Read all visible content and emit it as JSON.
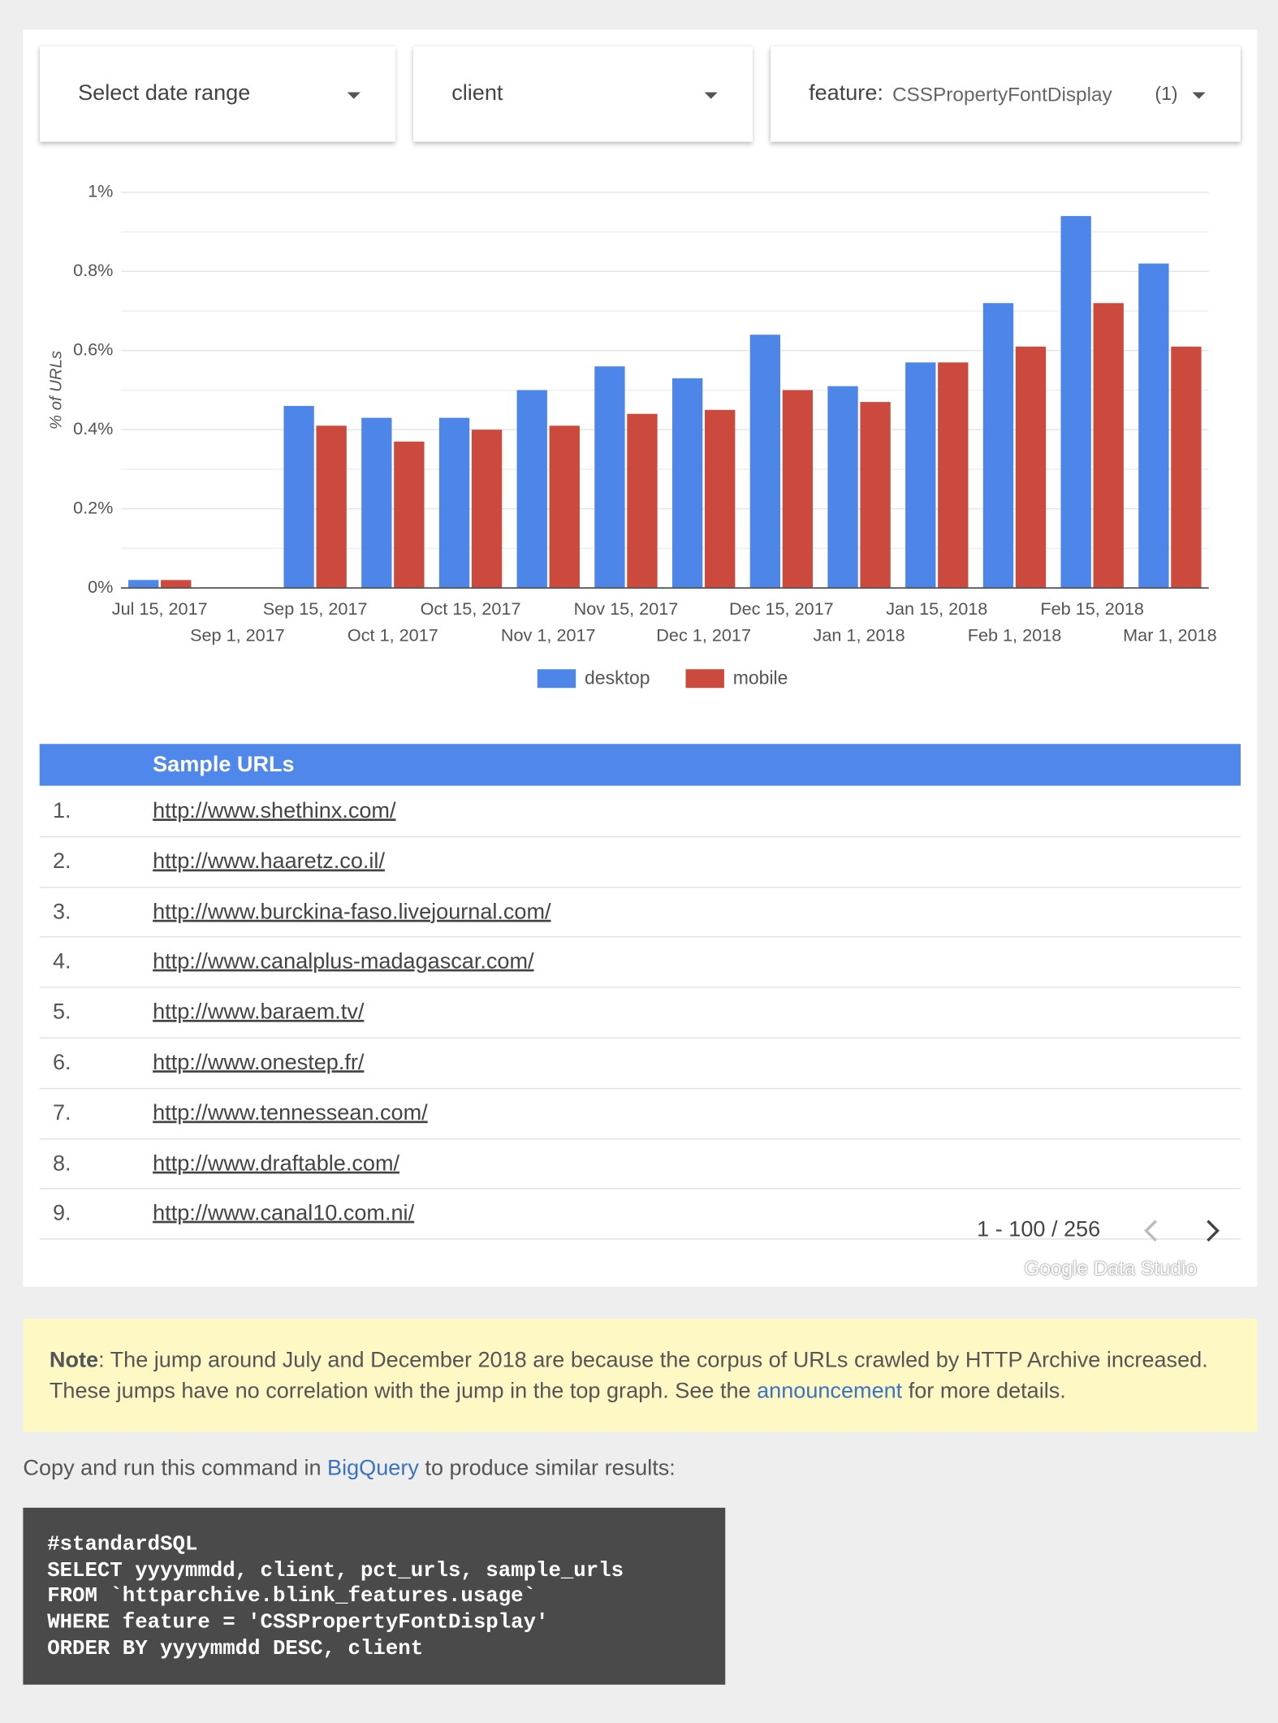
{
  "filters": {
    "date_range": "Select date range",
    "client": "client",
    "feature_label": "feature:",
    "feature_value": "CSSPropertyFontDisplay",
    "feature_count": "(1)"
  },
  "chart_data": {
    "type": "bar",
    "y_label": "% of URLs",
    "categories": [
      "Jul 15, 2017",
      "Sep 1, 2017",
      "Sep 15, 2017",
      "Oct 1, 2017",
      "Oct 15, 2017",
      "Nov 1, 2017",
      "Nov 15, 2017",
      "Dec 1, 2017",
      "Dec 15, 2017",
      "Jan 1, 2018",
      "Jan 15, 2018",
      "Feb 1, 2018",
      "Feb 15, 2018",
      "Mar 1, 2018"
    ],
    "series": [
      {
        "name": "desktop",
        "color": "#4d86e8",
        "values": [
          0.02,
          null,
          0.46,
          0.43,
          0.43,
          0.5,
          0.56,
          0.53,
          0.64,
          0.51,
          0.57,
          0.72,
          0.94,
          0.82
        ]
      },
      {
        "name": "mobile",
        "color": "#cc4a3d",
        "values": [
          0.02,
          null,
          0.41,
          0.37,
          0.4,
          0.41,
          0.44,
          0.45,
          0.5,
          0.47,
          0.57,
          0.61,
          0.72,
          0.61
        ]
      }
    ],
    "ylim": [
      0,
      1
    ],
    "yticks": [
      {
        "value": 0,
        "label": "0%"
      },
      {
        "value": 0.2,
        "label": "0.2%"
      },
      {
        "value": 0.4,
        "label": "0.4%"
      },
      {
        "value": 0.6,
        "label": "0.6%"
      },
      {
        "value": 0.8,
        "label": "0.8%"
      },
      {
        "value": 1,
        "label": "1%"
      }
    ],
    "grid": true,
    "minor_grid": true,
    "legend": "bottom"
  },
  "table": {
    "header": "Sample URLs",
    "rows": [
      [
        "1.",
        "http://www.shethinx.com/"
      ],
      [
        "2.",
        "http://www.haaretz.co.il/"
      ],
      [
        "3.",
        "http://www.burckina-faso.livejournal.com/"
      ],
      [
        "4.",
        "http://www.canalplus-madagascar.com/"
      ],
      [
        "5.",
        "http://www.baraem.tv/"
      ],
      [
        "6.",
        "http://www.onestep.fr/"
      ],
      [
        "7.",
        "http://www.tennessean.com/"
      ],
      [
        "8.",
        "http://www.draftable.com/"
      ],
      [
        "9.",
        "http://www.canal10.com.ni/"
      ]
    ]
  },
  "pagination": "1 - 100 / 256",
  "watermark": "Google Data Studio",
  "note": {
    "label": "Note",
    "text": ": The jump around July and December 2018 are because the corpus of URLs crawled by HTTP Archive increased. These jumps have no correlation with the jump in the top graph. See the ",
    "link": "announcement",
    "text_after": " for more details."
  },
  "intro": {
    "before": "Copy and run this command in ",
    "link": "BigQuery",
    "after": " to produce similar results:"
  },
  "code": [
    "#standardSQL",
    "SELECT yyyymmdd, client, pct_urls, sample_urls",
    "FROM `httparchive.blink_features.usage`",
    "WHERE feature = 'CSSPropertyFontDisplay'",
    "ORDER BY yyyymmdd DESC, client"
  ]
}
